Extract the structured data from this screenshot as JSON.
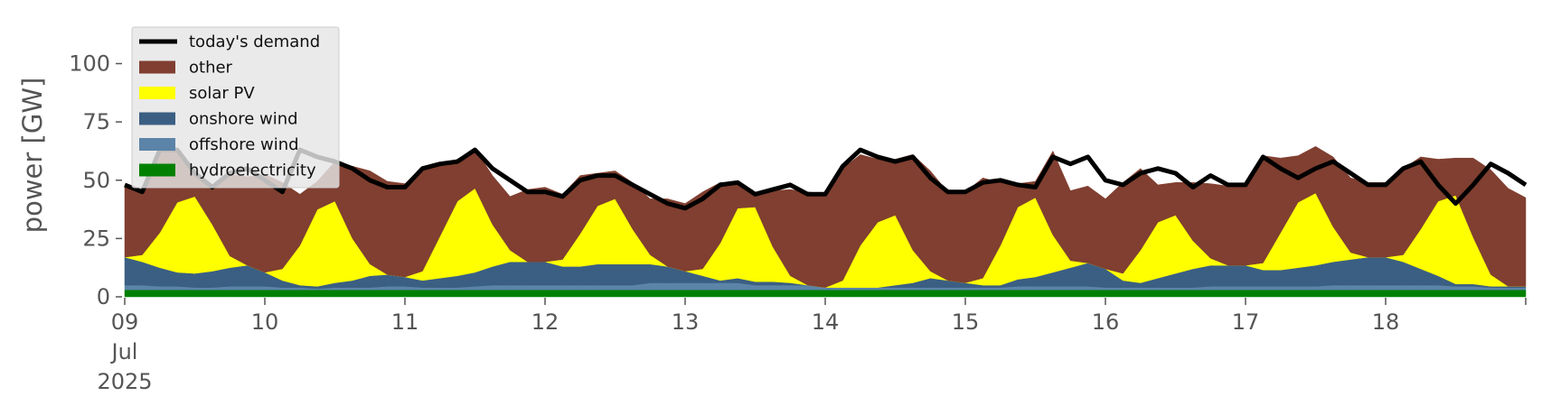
{
  "chart_data": {
    "type": "area",
    "ylabel": "power [GW]",
    "ylim": [
      0,
      120
    ],
    "yticks": [
      0,
      25,
      50,
      75,
      100
    ],
    "x_start": "2025-07-09",
    "x_end": "2025-07-19",
    "x_step_hours": 3,
    "xticks": [
      {
        "date": "2025-07-09",
        "lines": [
          "09",
          "Jul",
          "2025"
        ]
      },
      {
        "date": "2025-07-10",
        "lines": [
          "10"
        ]
      },
      {
        "date": "2025-07-11",
        "lines": [
          "11"
        ]
      },
      {
        "date": "2025-07-12",
        "lines": [
          "12"
        ]
      },
      {
        "date": "2025-07-13",
        "lines": [
          "13"
        ]
      },
      {
        "date": "2025-07-14",
        "lines": [
          "14"
        ]
      },
      {
        "date": "2025-07-15",
        "lines": [
          "15"
        ]
      },
      {
        "date": "2025-07-16",
        "lines": [
          "16"
        ]
      },
      {
        "date": "2025-07-17",
        "lines": [
          "17"
        ]
      },
      {
        "date": "2025-07-18",
        "lines": [
          "18"
        ]
      }
    ],
    "grid": false,
    "legend_position": "top-left",
    "stack_order": [
      "hydroelectricity",
      "offshore wind",
      "onshore wind",
      "solar PV",
      "other"
    ],
    "series": [
      {
        "name": "hydroelectricity",
        "kind": "area",
        "color": "#008000",
        "values": [
          3,
          3,
          3,
          3,
          3,
          3,
          3,
          3,
          3,
          3,
          3,
          3,
          3,
          3,
          3,
          3,
          3,
          3,
          3,
          3,
          3,
          3,
          3,
          3,
          3,
          3,
          3,
          3,
          3,
          3,
          3,
          3,
          3,
          3,
          3,
          3,
          3,
          3,
          3,
          3,
          3,
          3,
          3,
          3,
          3,
          3,
          3,
          3,
          3,
          3,
          3,
          3,
          3,
          3,
          3,
          3,
          3,
          3,
          3,
          3,
          3,
          3,
          3,
          3,
          3,
          3,
          3,
          3,
          3,
          3,
          3,
          3,
          3,
          3,
          3,
          3,
          3,
          3,
          3,
          3,
          3
        ]
      },
      {
        "name": "offshore wind",
        "kind": "area",
        "color": "#5b84a8",
        "values": [
          2,
          2,
          1.5,
          1.5,
          1,
          1,
          1.5,
          1.5,
          1.5,
          1,
          1,
          0.5,
          1,
          1,
          1,
          1.5,
          1.5,
          1,
          1,
          1,
          1.5,
          2,
          2,
          2,
          2,
          2,
          2,
          2,
          2,
          2,
          3,
          3,
          3,
          3,
          3,
          3,
          2,
          2,
          2,
          2,
          1,
          1,
          1,
          1,
          1,
          1,
          1,
          1,
          1,
          1,
          1,
          1.5,
          1.5,
          1.5,
          1.5,
          1.5,
          1,
          1,
          1,
          1,
          1,
          1,
          1.5,
          1.5,
          1.5,
          1.5,
          1.5,
          1.5,
          1.5,
          2,
          2,
          2,
          2,
          2,
          2,
          2,
          1.5,
          1.5,
          1,
          1,
          1
        ]
      },
      {
        "name": "onshore wind",
        "kind": "area",
        "color": "#3b5f83",
        "values": [
          12,
          10,
          8,
          6,
          6,
          7,
          8,
          9,
          6,
          3,
          1,
          1,
          2,
          3,
          5,
          5,
          4,
          3,
          4,
          5,
          6,
          8,
          10,
          10,
          10,
          8,
          8,
          9,
          9,
          9,
          8,
          7,
          5,
          3,
          1,
          2,
          1.5,
          1.5,
          1,
          0,
          0,
          0,
          0,
          0,
          1,
          2,
          4,
          3,
          2,
          1,
          1,
          3,
          4,
          6,
          8,
          10,
          8,
          3,
          2,
          4,
          6,
          8,
          9,
          9,
          9,
          7,
          7,
          8,
          9,
          10,
          11,
          12,
          12,
          10,
          7,
          4,
          1,
          1,
          0.5,
          0.5,
          0.5
        ]
      },
      {
        "name": "solar PV",
        "kind": "area",
        "color": "#ffff00",
        "values": [
          0,
          3,
          15,
          30,
          33,
          20,
          5,
          0,
          0,
          5,
          17,
          33,
          35,
          18,
          5,
          0,
          0,
          4,
          18,
          32,
          36,
          18,
          5,
          0,
          0,
          3,
          14,
          25,
          28,
          15,
          4,
          0,
          0,
          3,
          16,
          30,
          32,
          15,
          3,
          0,
          0,
          3,
          18,
          28,
          30,
          14,
          3,
          0,
          0,
          3,
          17,
          31,
          34,
          16,
          3,
          0,
          0,
          3,
          14,
          24,
          25,
          12,
          3,
          0,
          0,
          3,
          16,
          28,
          31,
          15,
          3,
          0,
          0,
          3,
          17,
          32,
          38,
          20,
          5,
          0,
          0
        ]
      },
      {
        "name": "other",
        "kind": "area",
        "color": "#803f30",
        "values": [
          30,
          27,
          36,
          22,
          10,
          16,
          35,
          38,
          42,
          37,
          22,
          12,
          17,
          31,
          40,
          40,
          40,
          45,
          30,
          18,
          17,
          21,
          23,
          31,
          32,
          28,
          25,
          14,
          12,
          20,
          24,
          29,
          29,
          33,
          26,
          10,
          5,
          24,
          37,
          40,
          40,
          48,
          39,
          27,
          24,
          41,
          43,
          38,
          39,
          43,
          27,
          10,
          7,
          36,
          30,
          33,
          30,
          39,
          35,
          16,
          14,
          25,
          32,
          34,
          34,
          46,
          32,
          20,
          20,
          30,
          32,
          32,
          32,
          37,
          31,
          18,
          16,
          34,
          45,
          42,
          38
        ]
      },
      {
        "name": "today's demand",
        "kind": "line",
        "color": "#000000",
        "values": [
          48,
          45,
          63,
          63,
          53,
          47,
          53,
          55,
          50,
          45,
          63,
          60,
          58,
          55,
          50,
          47,
          47,
          55,
          57,
          58,
          63,
          55,
          50,
          45,
          45,
          43,
          50,
          52,
          52,
          48,
          44,
          40,
          38,
          42,
          48,
          49,
          44,
          46,
          48,
          44,
          44,
          56,
          63,
          60,
          58,
          60,
          51,
          45,
          45,
          49,
          50,
          48,
          47,
          60,
          57,
          60,
          50,
          48,
          53,
          55,
          53,
          47,
          52,
          48,
          48,
          60,
          55,
          51,
          55,
          58,
          53,
          48,
          48,
          55,
          58,
          48,
          40,
          48,
          57,
          53,
          48
        ]
      },
      {
        "name": "",
        "kind": "area",
        "color": "#808080",
        "values": []
      }
    ],
    "legend": [
      {
        "label": "today's demand",
        "kind": "line",
        "color": "#000000"
      },
      {
        "label": "other",
        "kind": "patch",
        "color": "#803f30"
      },
      {
        "label": "solar PV",
        "kind": "patch",
        "color": "#ffff00"
      },
      {
        "label": "onshore wind",
        "kind": "patch",
        "color": "#3b5f83"
      },
      {
        "label": "offshore wind",
        "kind": "patch",
        "color": "#5b84a8"
      },
      {
        "label": "hydroelectricity",
        "kind": "patch",
        "color": "#008000"
      }
    ]
  }
}
